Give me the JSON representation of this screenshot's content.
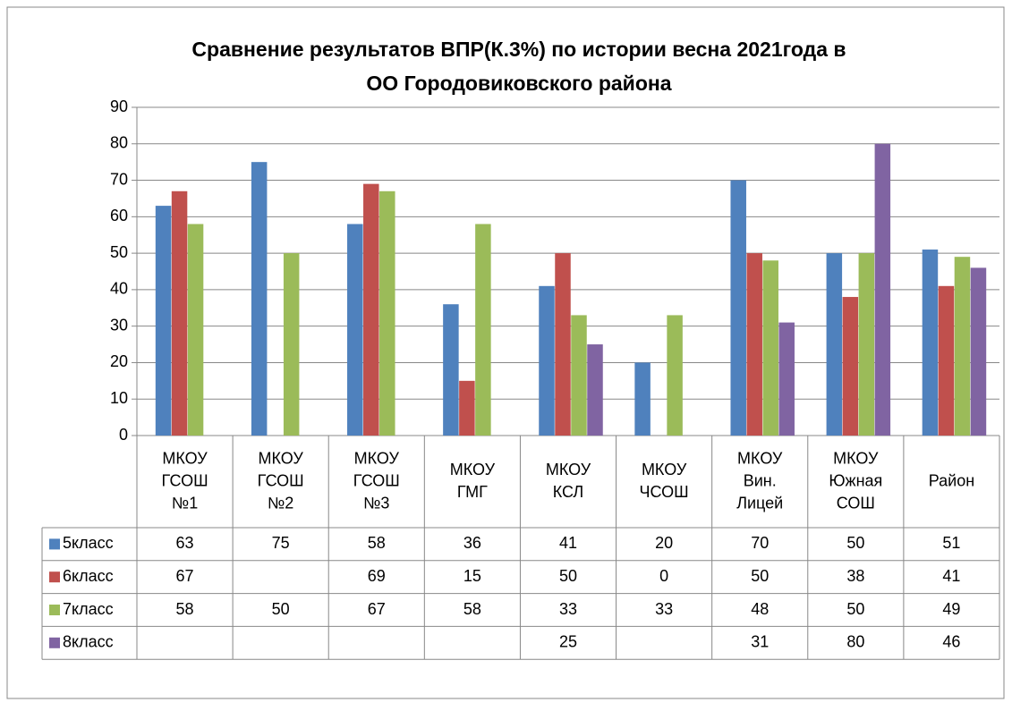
{
  "chart_data": {
    "type": "bar",
    "title": [
      "Сравнение результатов ВПР(К.3%) по истории весна 2021года в",
      "ОО Городовиковского района"
    ],
    "categories": [
      [
        "МКОУ",
        "ГСОШ",
        "№1"
      ],
      [
        "МКОУ",
        "ГСОШ",
        "№2"
      ],
      [
        "МКОУ",
        "ГСОШ",
        "№3"
      ],
      [
        "МКОУ",
        "ГМГ"
      ],
      [
        "МКОУ",
        "КСЛ"
      ],
      [
        "МКОУ",
        "ЧСОШ"
      ],
      [
        "МКОУ",
        "Вин.",
        "Лицей"
      ],
      [
        "МКОУ",
        "Южная",
        "СОШ"
      ],
      [
        "Район"
      ]
    ],
    "series": [
      {
        "name": "5класс",
        "color": "#4f81bd",
        "values": [
          63,
          75,
          58,
          36,
          41,
          20,
          70,
          50,
          51
        ]
      },
      {
        "name": "6класс",
        "color": "#c0504d",
        "values": [
          67,
          null,
          69,
          15,
          50,
          0,
          50,
          38,
          41
        ]
      },
      {
        "name": "7класс",
        "color": "#9bbb59",
        "values": [
          58,
          50,
          67,
          58,
          33,
          33,
          48,
          50,
          49
        ]
      },
      {
        "name": "8класс",
        "color": "#8064a2",
        "values": [
          null,
          null,
          null,
          null,
          25,
          null,
          31,
          80,
          46
        ]
      }
    ],
    "ylim": [
      0,
      90
    ],
    "yticks": [
      0,
      10,
      20,
      30,
      40,
      50,
      60,
      70,
      80,
      90
    ],
    "grid": true
  }
}
